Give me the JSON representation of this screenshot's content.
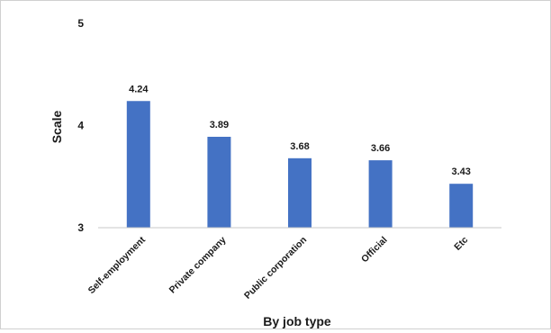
{
  "chart_data": {
    "type": "bar",
    "title": "",
    "xlabel": "By job type",
    "ylabel": "Scale",
    "categories": [
      "Self-employment",
      "Private company",
      "Public corporation",
      "Official",
      "Etc"
    ],
    "values": [
      4.24,
      3.89,
      3.68,
      3.66,
      3.43
    ],
    "data_labels": [
      "4.24",
      "3.89",
      "3.68",
      "3.66",
      "3.43"
    ],
    "ylim": [
      3,
      5
    ],
    "yticks": [
      3,
      4,
      5
    ],
    "ytick_labels": [
      "3",
      "4",
      "5"
    ],
    "grid": false,
    "legend": "none",
    "bar_color": "#4472c4",
    "axis_color": "#c8c8c8"
  }
}
